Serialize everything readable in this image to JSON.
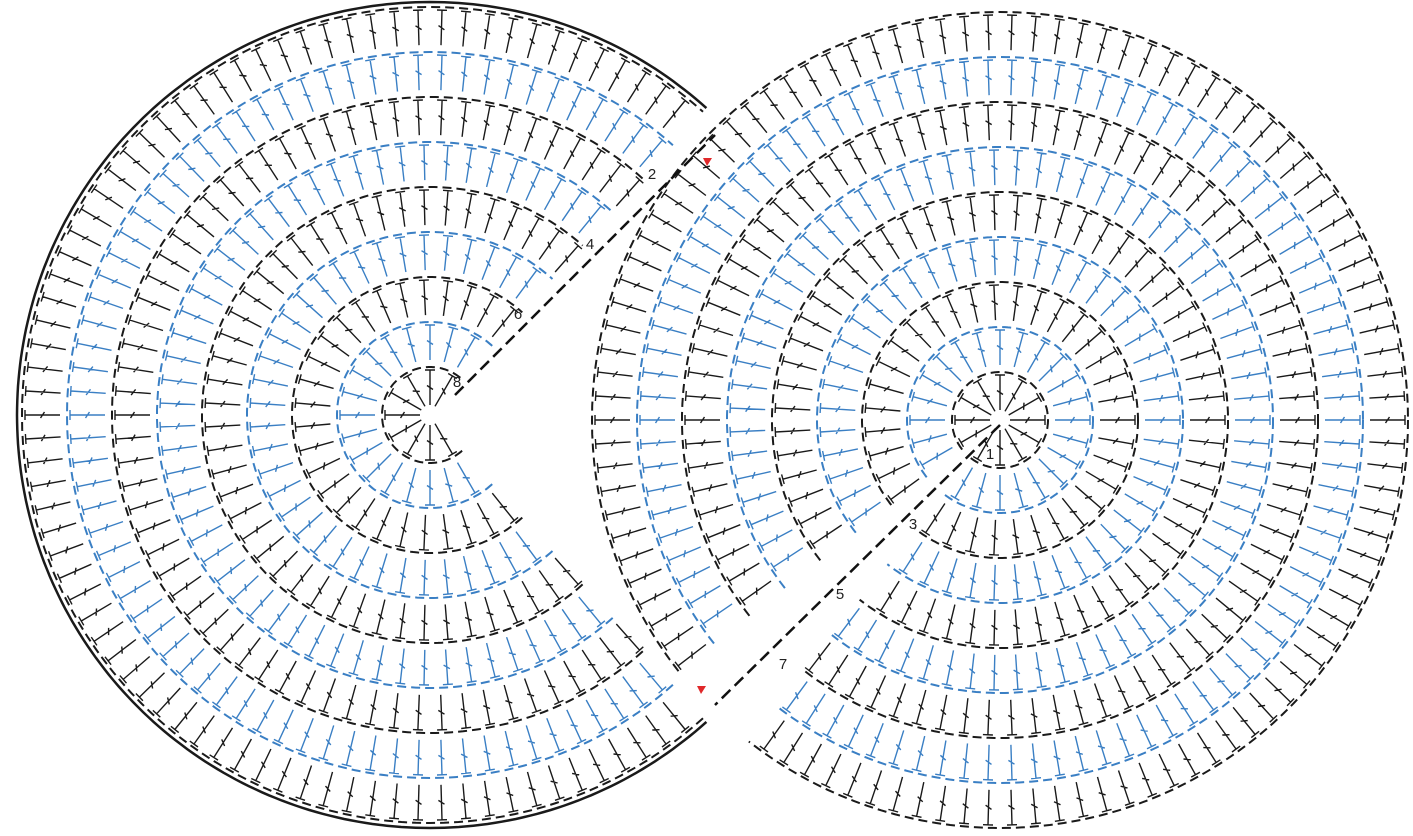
{
  "row_labels": [
    "1",
    "2",
    "3",
    "4",
    "5",
    "6",
    "7",
    "8"
  ]
}
